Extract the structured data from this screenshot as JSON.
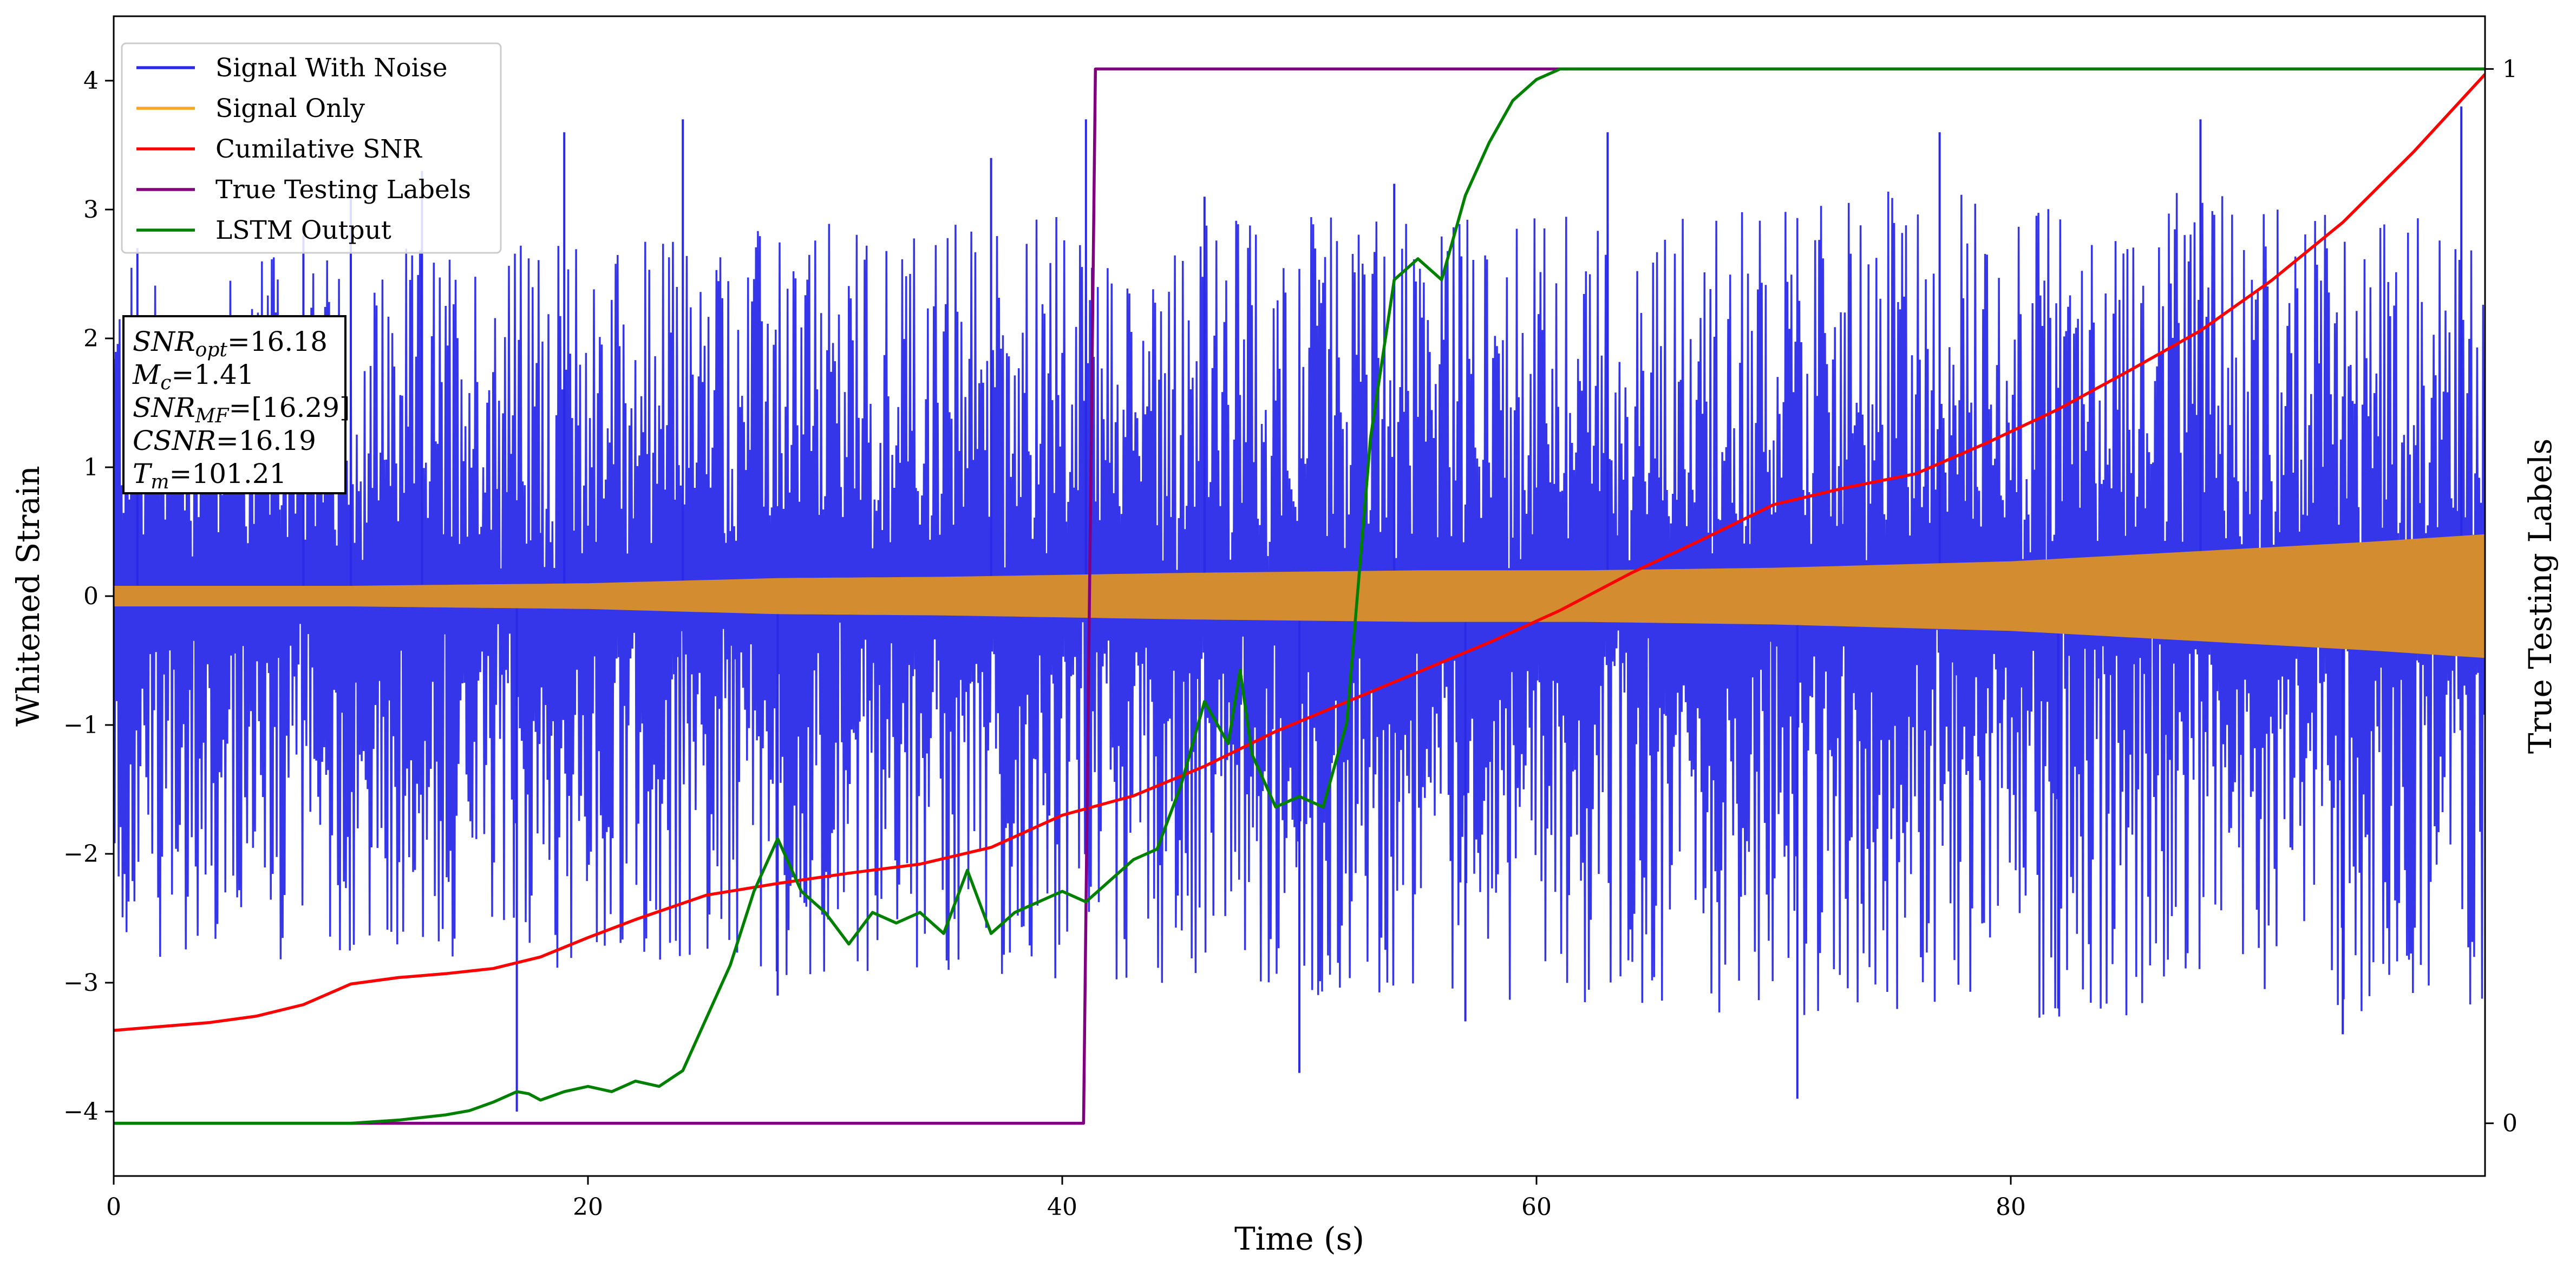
{
  "chart_data": {
    "type": "line",
    "xlabel": "Time (s)",
    "ylabel": "Whitened Strain",
    "ylabel_right": "True Testing Labels",
    "xlim": [
      0,
      100
    ],
    "ylim": [
      -4.5,
      4.5
    ],
    "ylim_right": [
      -0.05,
      1.05
    ],
    "x_ticks": [
      0,
      20,
      40,
      60,
      80
    ],
    "y_ticks": [
      -4,
      -3,
      -2,
      -1,
      0,
      1,
      2,
      3,
      4
    ],
    "y_ticks_right": [
      0,
      1
    ],
    "legend_placement": "top-left",
    "grid": false,
    "legend": [
      {
        "label": "Signal With Noise",
        "color": "#2a2ae8"
      },
      {
        "label": "Signal Only",
        "color": "#f5a623"
      },
      {
        "label": "Cumilative SNR",
        "color": "#ff0000"
      },
      {
        "label": "True Testing Labels",
        "color": "#800080"
      },
      {
        "label": "LSTM Output",
        "color": "#008000"
      }
    ],
    "info_box": [
      {
        "main": "SNR",
        "sub": "opt",
        "rest": "=16.18"
      },
      {
        "main": "M",
        "sub": "c",
        "rest": "=1.41"
      },
      {
        "main": "SNR",
        "sub": "MF",
        "rest": "=[16.29]"
      },
      {
        "main": "CSNR",
        "sub": "",
        "rest": "=16.19"
      },
      {
        "main": "T",
        "sub": "m",
        "rest": "=101.21"
      }
    ],
    "series": [
      {
        "name": "Signal With Noise",
        "color": "#2a2ae8",
        "axis": "left",
        "kind": "noise",
        "envelope_pos": [
          [
            0,
            2.6
          ],
          [
            20,
            2.8
          ],
          [
            40,
            3.0
          ],
          [
            60,
            3.0
          ],
          [
            80,
            3.2
          ],
          [
            100,
            3.0
          ]
        ],
        "envelope_neg": [
          [
            0,
            -2.8
          ],
          [
            20,
            -2.9
          ],
          [
            40,
            -3.0
          ],
          [
            60,
            -3.2
          ],
          [
            80,
            -3.3
          ],
          [
            100,
            -3.2
          ]
        ],
        "spikes": [
          [
            1,
            2.7
          ],
          [
            8,
            2.8
          ],
          [
            10,
            3.1
          ],
          [
            13,
            3.3
          ],
          [
            17,
            -4.0
          ],
          [
            19,
            3.6
          ],
          [
            24,
            3.7
          ],
          [
            28,
            -3.1
          ],
          [
            37,
            3.4
          ],
          [
            41,
            3.7
          ],
          [
            46,
            3.1
          ],
          [
            50,
            -3.7
          ],
          [
            54,
            3.2
          ],
          [
            57,
            -3.3
          ],
          [
            63,
            3.6
          ],
          [
            71,
            -3.9
          ],
          [
            77,
            3.6
          ],
          [
            82,
            -3.2
          ],
          [
            88,
            3.7
          ],
          [
            94,
            -3.4
          ],
          [
            99,
            3.8
          ]
        ]
      },
      {
        "name": "Signal Only",
        "color": "#d38c30",
        "axis": "left",
        "kind": "band",
        "envelope": [
          [
            0,
            0.08
          ],
          [
            10,
            0.08
          ],
          [
            20,
            0.1
          ],
          [
            28,
            0.14
          ],
          [
            35,
            0.15
          ],
          [
            45,
            0.18
          ],
          [
            55,
            0.2
          ],
          [
            62,
            0.2
          ],
          [
            70,
            0.22
          ],
          [
            80,
            0.27
          ],
          [
            88,
            0.35
          ],
          [
            95,
            0.42
          ],
          [
            100,
            0.48
          ]
        ]
      },
      {
        "name": "Cumilative SNR",
        "color": "#ff0000",
        "axis": "left",
        "x": [
          0,
          2,
          4,
          6,
          8,
          10,
          12,
          14,
          16,
          18,
          20,
          22,
          25,
          28,
          31,
          34,
          37,
          40,
          43,
          46,
          49,
          52,
          55,
          58,
          61,
          64,
          67,
          70,
          73,
          76,
          79,
          82,
          85,
          88,
          91,
          94,
          97,
          100
        ],
        "y": [
          -3.37,
          -3.34,
          -3.31,
          -3.26,
          -3.17,
          -3.01,
          -2.96,
          -2.93,
          -2.89,
          -2.8,
          -2.65,
          -2.51,
          -2.32,
          -2.23,
          -2.15,
          -2.08,
          -1.95,
          -1.7,
          -1.55,
          -1.32,
          -1.05,
          -0.82,
          -0.59,
          -0.36,
          -0.11,
          0.18,
          0.44,
          0.71,
          0.84,
          0.95,
          1.19,
          1.45,
          1.75,
          2.06,
          2.45,
          2.9,
          3.45,
          4.05
        ]
      },
      {
        "name": "True Testing Labels",
        "color": "#800080",
        "axis": "right",
        "x": [
          0,
          40.9,
          41.4,
          100
        ],
        "y": [
          0,
          0,
          1,
          1
        ]
      },
      {
        "name": "LSTM Output",
        "color": "#008000",
        "axis": "right",
        "x": [
          0,
          10,
          12,
          14,
          15,
          16,
          17,
          17.5,
          18,
          19,
          20,
          21,
          22,
          23,
          24,
          25,
          26,
          27,
          28,
          29,
          30,
          31,
          32,
          33,
          34,
          35,
          36,
          37,
          38,
          39,
          40,
          41,
          42,
          43,
          44,
          45,
          46,
          47,
          47.5,
          48,
          49,
          50,
          51,
          52,
          53,
          54,
          55,
          56,
          57,
          58,
          59,
          60,
          61,
          62,
          65,
          70,
          100
        ],
        "y": [
          0,
          0,
          0.003,
          0.008,
          0.012,
          0.02,
          0.03,
          0.028,
          0.022,
          0.03,
          0.035,
          0.03,
          0.04,
          0.035,
          0.05,
          0.1,
          0.15,
          0.22,
          0.27,
          0.22,
          0.2,
          0.17,
          0.2,
          0.19,
          0.2,
          0.18,
          0.24,
          0.18,
          0.2,
          0.21,
          0.22,
          0.21,
          0.23,
          0.25,
          0.26,
          0.32,
          0.4,
          0.36,
          0.43,
          0.35,
          0.3,
          0.31,
          0.3,
          0.38,
          0.65,
          0.8,
          0.82,
          0.8,
          0.88,
          0.93,
          0.97,
          0.99,
          1.0,
          1.0,
          1.0,
          1.0,
          1.0
        ]
      }
    ]
  }
}
